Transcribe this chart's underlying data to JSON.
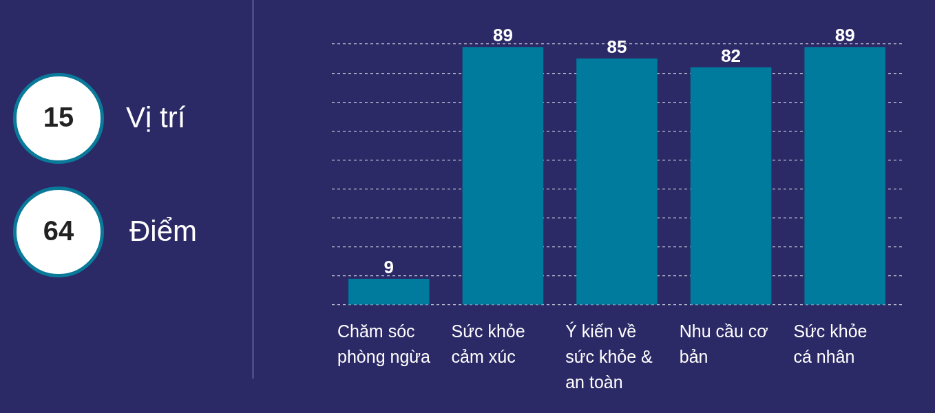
{
  "chart_data": [
    {
      "type": "other",
      "annotations": [
        "15",
        "Vị trí",
        "64",
        "Điểm"
      ]
    },
    {
      "type": "bar",
      "categories": [
        "Chăm sóc phòng ngừa",
        "Sức khỏe cảm xúc",
        "Ý kiến về sức khỏe & an toàn",
        "Nhu cầu cơ bản",
        "Sức khỏe cá nhân"
      ],
      "values": [
        9,
        89,
        85,
        82,
        89
      ],
      "color": "#007b9e",
      "ylim": [
        0,
        90
      ],
      "yticks": [
        {
          "value": 0,
          "label": null
        },
        {
          "value": 10,
          "label": null
        },
        {
          "value": 20,
          "label": null
        },
        {
          "value": 30,
          "label": null
        },
        {
          "value": 40,
          "label": null
        },
        {
          "value": 50,
          "label": null
        },
        {
          "value": 60,
          "label": null
        },
        {
          "value": 70,
          "label": null
        },
        {
          "value": 80,
          "label": null
        },
        {
          "value": 90,
          "label": null
        }
      ],
      "grid": "y",
      "data_labels": true,
      "tick_labels": "x"
    }
  ]
}
